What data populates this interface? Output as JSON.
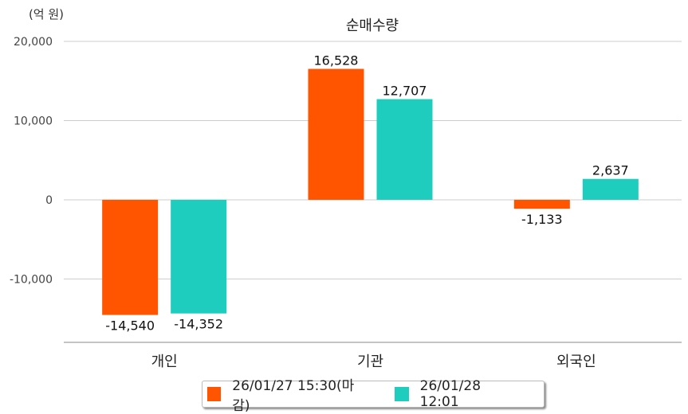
{
  "chart_data": {
    "type": "bar",
    "title": "순매수량",
    "unit_label": "(억 원)",
    "categories": [
      "개인",
      "기관",
      "외국인"
    ],
    "series": [
      {
        "name": "26/01/27 15:30(마감)",
        "color": "#ff5400",
        "values": [
          -14540,
          16528,
          -1133
        ]
      },
      {
        "name": "26/01/28 12:01",
        "color": "#1ecdbd",
        "values": [
          -14352,
          12707,
          2637
        ]
      }
    ],
    "data_labels": [
      [
        "-14,540",
        "16,528",
        "-1,133"
      ],
      [
        "-14,352",
        "12,707",
        "2,637"
      ]
    ],
    "yticks": [
      20000,
      10000,
      0,
      -10000
    ],
    "ytick_labels": [
      "20,000",
      "10,000",
      "0",
      "-10,000"
    ],
    "ylim": [
      -18000,
      20000
    ],
    "grid": true,
    "legend_position": "bottom"
  }
}
